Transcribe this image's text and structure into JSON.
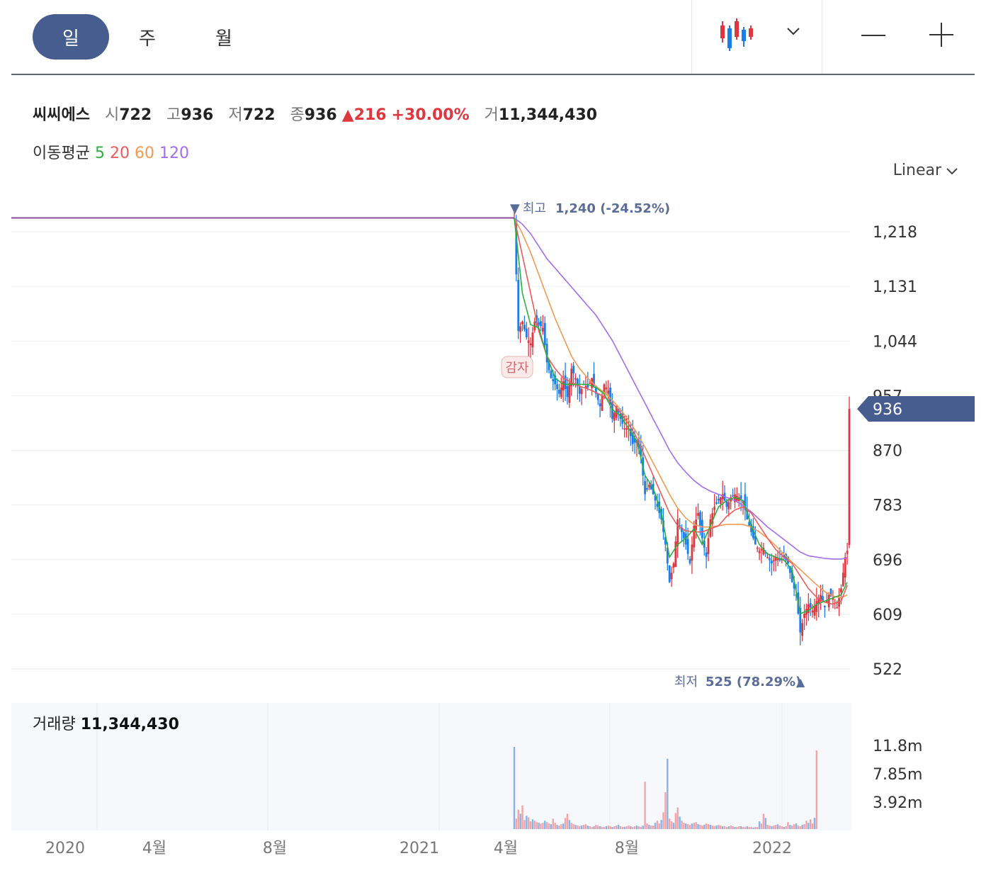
{
  "tabs": {
    "day": "일",
    "week": "주",
    "month": "월"
  },
  "stock": {
    "name": "씨씨에스",
    "open_label": "시",
    "open": "722",
    "high_label": "고",
    "high": "936",
    "low_label": "저",
    "low": "722",
    "close_label": "종",
    "close": "936",
    "change": "216",
    "change_pct": "+30.00%",
    "volume_label": "거",
    "volume": "11,344,430"
  },
  "ma": {
    "label": "이동평균",
    "p5": "5",
    "p20": "20",
    "p60": "60",
    "p120": "120"
  },
  "scale_mode": "Linear",
  "volume_panel": {
    "label": "거래량",
    "value": "11,344,430"
  },
  "colors": {
    "up": "#e0373f",
    "down": "#1a7ee8",
    "ma5": "#2fae3e",
    "ma20": "#f05a5a",
    "ma60": "#f29a52",
    "ma120": "#a46cf0",
    "accent": "#475c8f"
  },
  "chart_data": {
    "type": "candlestick",
    "y_ticks": [
      1218,
      1131,
      1044,
      957,
      870,
      783,
      696,
      609,
      522
    ],
    "ylim": [
      513,
      1240
    ],
    "volume_ticks": [
      "11.8m",
      "7.85m",
      "3.92m"
    ],
    "x_ticks": [
      "2020",
      "4월",
      "8월",
      "2021",
      "4월",
      "8월",
      "2022"
    ],
    "current_price": "936",
    "high_marker": {
      "label": "최고",
      "value": "1,240",
      "pct": "(-24.52%)"
    },
    "low_marker": {
      "label": "최저",
      "value": "525",
      "pct": "(78.29%)"
    },
    "event_marker": "감자",
    "price_path": [
      [
        0,
        1240
      ],
      [
        2,
        1060
      ],
      [
        4,
        1075
      ],
      [
        6,
        1050
      ],
      [
        8,
        1040
      ],
      [
        10,
        1075
      ],
      [
        12,
        1070
      ],
      [
        14,
        1065
      ],
      [
        16,
        1010
      ],
      [
        18,
        985
      ],
      [
        20,
        975
      ],
      [
        22,
        960
      ],
      [
        24,
        980
      ],
      [
        26,
        955
      ],
      [
        28,
        1000
      ],
      [
        30,
        985
      ],
      [
        32,
        960
      ],
      [
        34,
        975
      ],
      [
        36,
        970
      ],
      [
        38,
        985
      ],
      [
        40,
        960
      ],
      [
        42,
        940
      ],
      [
        44,
        975
      ],
      [
        46,
        965
      ],
      [
        48,
        920
      ],
      [
        50,
        940
      ],
      [
        52,
        920
      ],
      [
        54,
        905
      ],
      [
        56,
        905
      ],
      [
        58,
        880
      ],
      [
        60,
        885
      ],
      [
        62,
        860
      ],
      [
        64,
        800
      ],
      [
        66,
        815
      ],
      [
        68,
        800
      ],
      [
        70,
        780
      ],
      [
        72,
        760
      ],
      [
        74,
        720
      ],
      [
        76,
        660
      ],
      [
        78,
        690
      ],
      [
        80,
        760
      ],
      [
        82,
        740
      ],
      [
        84,
        720
      ],
      [
        86,
        690
      ],
      [
        88,
        750
      ],
      [
        90,
        770
      ],
      [
        92,
        730
      ],
      [
        94,
        700
      ],
      [
        96,
        760
      ],
      [
        98,
        780
      ],
      [
        100,
        790
      ],
      [
        102,
        800
      ],
      [
        104,
        780
      ],
      [
        106,
        795
      ],
      [
        108,
        800
      ],
      [
        110,
        795
      ],
      [
        112,
        790
      ],
      [
        114,
        760
      ],
      [
        116,
        740
      ],
      [
        118,
        720
      ],
      [
        120,
        710
      ],
      [
        122,
        715
      ],
      [
        124,
        700
      ],
      [
        126,
        690
      ],
      [
        128,
        700
      ],
      [
        130,
        695
      ],
      [
        132,
        700
      ],
      [
        134,
        690
      ],
      [
        136,
        660
      ],
      [
        138,
        640
      ],
      [
        140,
        580
      ],
      [
        142,
        610
      ],
      [
        144,
        625
      ],
      [
        146,
        615
      ],
      [
        148,
        630
      ],
      [
        150,
        640
      ],
      [
        152,
        620
      ],
      [
        154,
        640
      ],
      [
        156,
        635
      ],
      [
        158,
        620
      ],
      [
        160,
        650
      ],
      [
        162,
        700
      ],
      [
        163,
        710
      ],
      [
        164,
        936
      ]
    ],
    "ma5_path": [
      [
        0,
        1240
      ],
      [
        4,
        1120
      ],
      [
        8,
        1070
      ],
      [
        12,
        1065
      ],
      [
        16,
        1020
      ],
      [
        20,
        985
      ],
      [
        24,
        975
      ],
      [
        28,
        975
      ],
      [
        32,
        975
      ],
      [
        36,
        975
      ],
      [
        40,
        970
      ],
      [
        44,
        960
      ],
      [
        48,
        935
      ],
      [
        52,
        925
      ],
      [
        56,
        905
      ],
      [
        60,
        885
      ],
      [
        64,
        830
      ],
      [
        68,
        810
      ],
      [
        72,
        770
      ],
      [
        76,
        700
      ],
      [
        80,
        720
      ],
      [
        84,
        730
      ],
      [
        88,
        745
      ],
      [
        92,
        720
      ],
      [
        96,
        750
      ],
      [
        100,
        780
      ],
      [
        104,
        790
      ],
      [
        108,
        795
      ],
      [
        112,
        790
      ],
      [
        116,
        750
      ],
      [
        120,
        720
      ],
      [
        124,
        705
      ],
      [
        128,
        700
      ],
      [
        132,
        695
      ],
      [
        136,
        680
      ],
      [
        140,
        610
      ],
      [
        144,
        615
      ],
      [
        148,
        625
      ],
      [
        152,
        630
      ],
      [
        156,
        635
      ],
      [
        160,
        640
      ],
      [
        163,
        660
      ]
    ],
    "ma20_path": [
      [
        0,
        1240
      ],
      [
        4,
        1180
      ],
      [
        8,
        1120
      ],
      [
        12,
        1060
      ],
      [
        16,
        1020
      ],
      [
        20,
        1000
      ],
      [
        24,
        985
      ],
      [
        28,
        978
      ],
      [
        32,
        972
      ],
      [
        36,
        968
      ],
      [
        40,
        962
      ],
      [
        44,
        955
      ],
      [
        48,
        945
      ],
      [
        52,
        930
      ],
      [
        56,
        912
      ],
      [
        60,
        890
      ],
      [
        64,
        860
      ],
      [
        68,
        830
      ],
      [
        72,
        800
      ],
      [
        76,
        770
      ],
      [
        80,
        750
      ],
      [
        84,
        742
      ],
      [
        88,
        740
      ],
      [
        92,
        740
      ],
      [
        96,
        745
      ],
      [
        100,
        750
      ],
      [
        104,
        765
      ],
      [
        108,
        775
      ],
      [
        112,
        780
      ],
      [
        116,
        770
      ],
      [
        120,
        750
      ],
      [
        124,
        730
      ],
      [
        128,
        712
      ],
      [
        132,
        700
      ],
      [
        136,
        690
      ],
      [
        140,
        670
      ],
      [
        144,
        650
      ],
      [
        148,
        636
      ],
      [
        152,
        628
      ],
      [
        156,
        625
      ],
      [
        160,
        630
      ],
      [
        163,
        655
      ]
    ],
    "ma60_path": [
      [
        0,
        1240
      ],
      [
        4,
        1215
      ],
      [
        8,
        1185
      ],
      [
        12,
        1150
      ],
      [
        16,
        1115
      ],
      [
        20,
        1080
      ],
      [
        24,
        1050
      ],
      [
        28,
        1020
      ],
      [
        32,
        1000
      ],
      [
        36,
        985
      ],
      [
        40,
        972
      ],
      [
        44,
        962
      ],
      [
        48,
        950
      ],
      [
        52,
        935
      ],
      [
        56,
        918
      ],
      [
        60,
        898
      ],
      [
        64,
        875
      ],
      [
        68,
        850
      ],
      [
        72,
        825
      ],
      [
        76,
        800
      ],
      [
        80,
        778
      ],
      [
        84,
        762
      ],
      [
        88,
        752
      ],
      [
        92,
        748
      ],
      [
        96,
        748
      ],
      [
        100,
        750
      ],
      [
        104,
        752
      ],
      [
        108,
        752
      ],
      [
        112,
        752
      ],
      [
        116,
        748
      ],
      [
        120,
        740
      ],
      [
        124,
        730
      ],
      [
        128,
        718
      ],
      [
        132,
        705
      ],
      [
        136,
        692
      ],
      [
        140,
        680
      ],
      [
        144,
        668
      ],
      [
        148,
        656
      ],
      [
        152,
        645
      ],
      [
        156,
        638
      ],
      [
        160,
        635
      ],
      [
        163,
        640
      ]
    ],
    "ma120_path": [
      [
        0,
        1240
      ],
      [
        4,
        1230
      ],
      [
        8,
        1215
      ],
      [
        12,
        1195
      ],
      [
        16,
        1175
      ],
      [
        20,
        1160
      ],
      [
        24,
        1145
      ],
      [
        28,
        1130
      ],
      [
        32,
        1115
      ],
      [
        36,
        1100
      ],
      [
        40,
        1085
      ],
      [
        44,
        1065
      ],
      [
        48,
        1045
      ],
      [
        52,
        1020
      ],
      [
        56,
        995
      ],
      [
        60,
        970
      ],
      [
        64,
        945
      ],
      [
        68,
        920
      ],
      [
        72,
        895
      ],
      [
        76,
        870
      ],
      [
        80,
        850
      ],
      [
        84,
        835
      ],
      [
        88,
        822
      ],
      [
        92,
        812
      ],
      [
        96,
        805
      ],
      [
        100,
        800
      ],
      [
        104,
        795
      ],
      [
        108,
        790
      ],
      [
        112,
        782
      ],
      [
        116,
        772
      ],
      [
        120,
        760
      ],
      [
        124,
        748
      ],
      [
        128,
        738
      ],
      [
        132,
        728
      ],
      [
        136,
        718
      ],
      [
        140,
        708
      ],
      [
        144,
        702
      ],
      [
        148,
        700
      ],
      [
        152,
        698
      ],
      [
        156,
        697
      ],
      [
        160,
        697
      ],
      [
        163,
        699
      ]
    ],
    "volume_values": [
      11.8,
      1.5,
      2.8,
      2.2,
      3.4,
      1.3,
      1.9,
      1.7,
      1.1,
      1.4,
      1.2,
      1.0,
      0.9,
      0.8,
      0.9,
      1.2,
      1.0,
      0.8,
      0.7,
      1.5,
      0.9,
      0.6,
      0.5,
      0.7,
      0.8,
      1.6,
      2.2,
      1.3,
      0.9,
      0.7,
      0.6,
      0.5,
      0.4,
      0.5,
      0.6,
      0.7,
      0.5,
      0.4,
      0.3,
      0.4,
      0.6,
      0.5,
      0.4,
      0.3,
      0.3,
      0.4,
      0.5,
      0.4,
      0.3,
      0.4,
      0.5,
      0.6,
      0.4,
      0.3,
      0.3,
      0.4,
      0.5,
      0.4,
      0.3,
      0.4,
      0.5,
      0.4,
      0.3,
      0.5,
      6.8,
      0.8,
      0.6,
      0.5,
      0.5,
      0.9,
      1.2,
      0.8,
      1.3,
      2.4,
      5.3,
      10.1,
      1.5,
      1.1,
      0.9,
      2.3,
      3.1,
      1.8,
      1.2,
      0.9,
      0.8,
      0.7,
      0.6,
      0.8,
      0.9,
      1.0,
      0.7,
      0.6,
      0.5,
      0.6,
      0.8,
      0.7,
      0.6,
      0.5,
      0.4,
      0.5,
      0.6,
      0.5,
      0.4,
      0.4,
      0.3,
      0.4,
      0.5,
      0.4,
      0.3,
      0.3,
      0.4,
      0.4,
      0.3,
      0.3,
      0.4,
      0.3,
      0.3,
      0.2,
      0.3,
      0.3,
      1.1,
      0.8,
      2.2,
      1.6,
      0.6,
      0.5,
      0.4,
      0.5,
      0.6,
      0.7,
      0.5,
      0.4,
      0.3,
      0.4,
      1.0,
      0.6,
      0.5,
      0.7,
      0.8,
      0.5,
      0.4,
      0.6,
      0.7,
      1.2,
      0.9,
      1.4,
      0.8,
      1.6,
      11.3
    ]
  }
}
